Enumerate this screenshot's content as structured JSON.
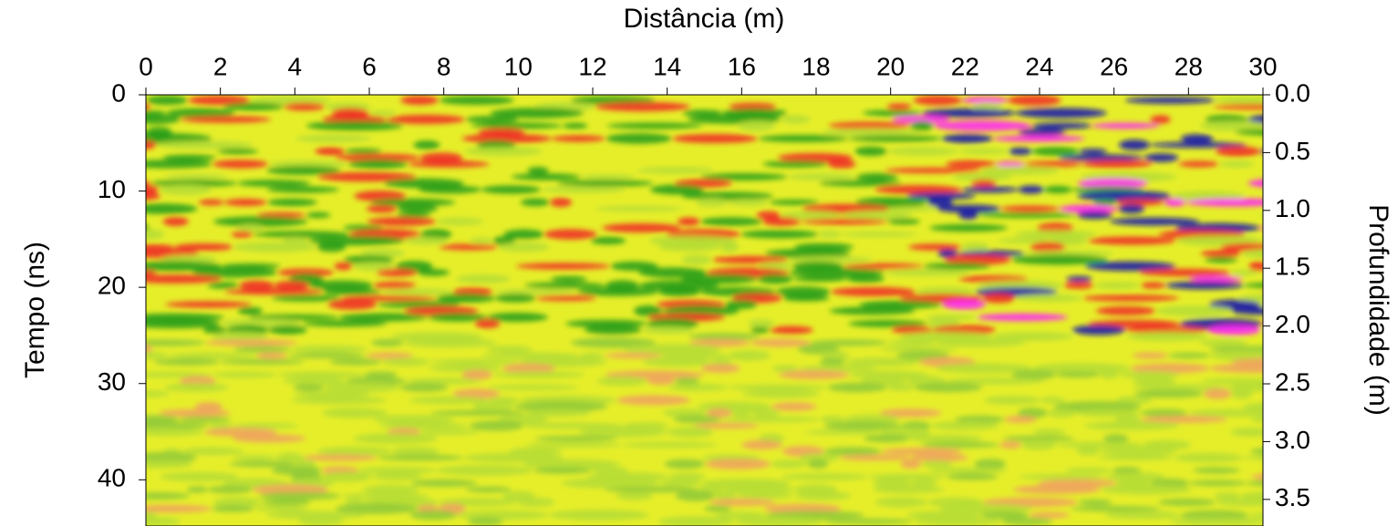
{
  "chart_data": {
    "type": "radargram",
    "title": "Distância (m)",
    "ylabel": "Tempo (ns)",
    "y2label": "Profundidade (m)",
    "xlim": [
      0,
      30
    ],
    "xticks": [
      0,
      2,
      4,
      6,
      8,
      10,
      12,
      14,
      16,
      18,
      20,
      22,
      24,
      26,
      28,
      30
    ],
    "ylim": [
      0,
      44.8
    ],
    "yticks": [
      0,
      10,
      20,
      30,
      40
    ],
    "y2lim": [
      0,
      3.73
    ],
    "y2ticks": [
      {
        "value": 0,
        "label": "0.0"
      },
      {
        "value": 0.5,
        "label": "0.5"
      },
      {
        "value": 1,
        "label": "1.0"
      },
      {
        "value": 1.5,
        "label": "1.5"
      },
      {
        "value": 2,
        "label": "2.0"
      },
      {
        "value": 2.5,
        "label": "2.5"
      },
      {
        "value": 3,
        "label": "3.0"
      },
      {
        "value": 3.5,
        "label": "3.5"
      }
    ]
  }
}
